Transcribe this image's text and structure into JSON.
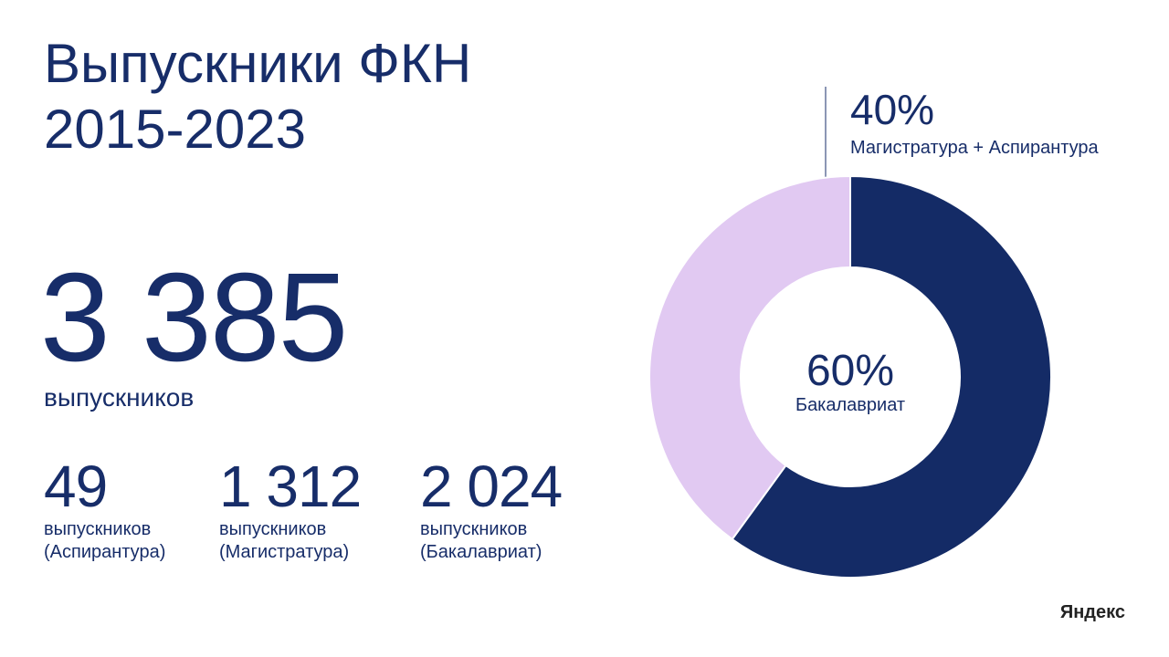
{
  "title_lines": [
    "Выпускники ФКН",
    "2015-2023"
  ],
  "total": {
    "value": "3 385",
    "label": "выпускников"
  },
  "stats": [
    {
      "value": "49",
      "label_lines": [
        "выпускников",
        "(Аспирантура)"
      ]
    },
    {
      "value": "1 312",
      "label_lines": [
        "выпускников",
        "(Магистратура)"
      ]
    },
    {
      "value": "2 024",
      "label_lines": [
        "выпускников",
        "(Бакалавриат)"
      ]
    }
  ],
  "logo": "Яндекс",
  "chart_data": {
    "type": "pie",
    "donut": true,
    "categories": [
      "Бакалавриат",
      "Магистратура + Аспирантура"
    ],
    "values": [
      60,
      40
    ],
    "value_labels": [
      "60%",
      "40%"
    ],
    "colors": [
      "#142b66",
      "#e1c9f2"
    ]
  }
}
